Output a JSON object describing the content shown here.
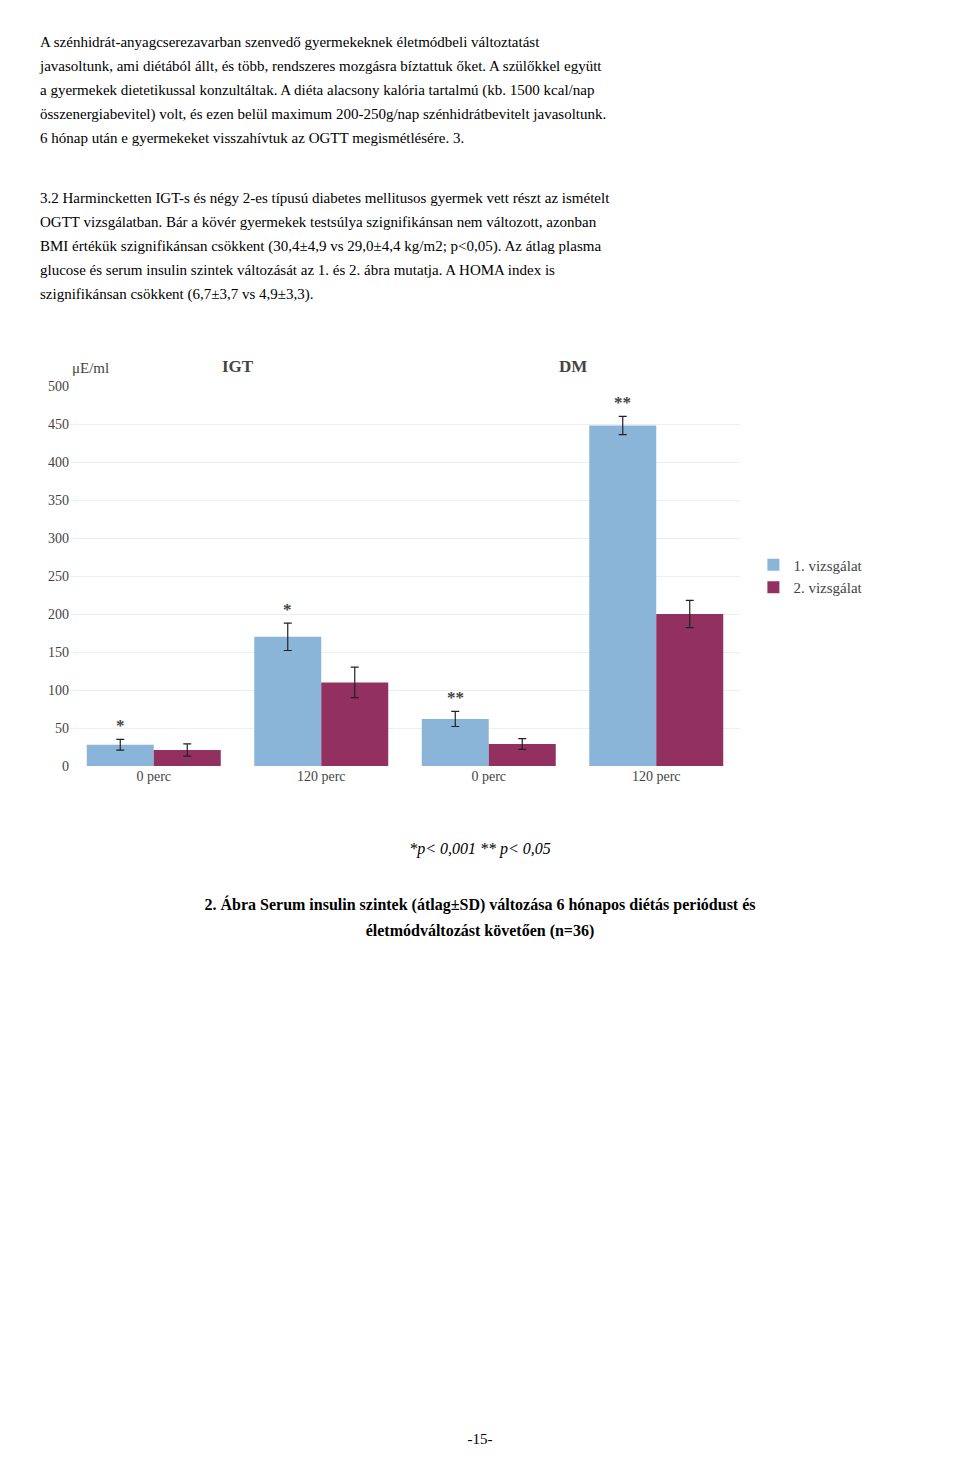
{
  "chart_data": {
    "type": "bar",
    "ylabel": "μE/ml",
    "categories": [
      "0 perc",
      "120 perc",
      "0 perc",
      "120 perc"
    ],
    "groups": [
      {
        "name": "IGT",
        "indices": [
          0,
          1
        ]
      },
      {
        "name": "DM",
        "indices": [
          2,
          3
        ]
      }
    ],
    "series": [
      {
        "name": "1. vizsgálat",
        "color": "#8ab4d8",
        "values": [
          28,
          170,
          62,
          448
        ],
        "errors": [
          7,
          18,
          10,
          12
        ]
      },
      {
        "name": "2. vizsgálat",
        "color": "#923060",
        "values": [
          21,
          110,
          29,
          200
        ],
        "errors": [
          8,
          20,
          7,
          18
        ]
      }
    ],
    "annotations": [
      {
        "text": "*",
        "index": 0,
        "series": "1. vizsgálat"
      },
      {
        "text": "*",
        "index": 1,
        "series": "1. vizsgálat"
      },
      {
        "text": "**",
        "index": 2,
        "series": "1. vizsgálat"
      },
      {
        "text": "**",
        "index": 3,
        "series": "1. vizsgálat"
      }
    ],
    "ylim": [
      0,
      500
    ],
    "yticks": [
      0,
      50,
      100,
      150,
      200,
      250,
      300,
      350,
      400,
      450,
      500
    ],
    "grid": true,
    "legend": "right"
  },
  "paragraphs": [
    [
      "A szénhidrát-anyagcserezavarban szenvedő gyermekeknek életmódbeli változtatást",
      "javasoltunk, ami diétából állt, és több, rendszeres mozgásra bíztattuk őket. A szülőkkel együtt",
      "a gyermekek dietetikussal konzultáltak. A diéta alacsony kalória tartalmú (kb. 1500 kcal/nap",
      "összenergiabevitel) volt, és ezen belül maximum 200-250g/nap szénhidrátbevitelt javasoltunk.",
      "6 hónap után e gyermekeket visszahívtuk az OGTT megismétlésére. 3."
    ],
    [
      "3.2 Harmincketten IGT-s és négy 2-es típusú diabetes mellitusos gyermek vett részt az ismételt",
      "OGTT vizsgálatban. Bár a kövér gyermekek testsúlya szignifikánsan nem változott, azonban",
      "BMI értékük szignifikánsan csökkent (30,4±4,9 vs 29,0±4,4 kg/m2; p<0,05). Az átlag plasma",
      "glucose és serum insulin szintek változását az 1. és 2. ábra mutatja. A HOMA index is",
      "szignifikánsan csökkent (6,7±3,7 vs 4,9±3,3)."
    ]
  ],
  "caption": [
    "*p< 0,001    ** p< 0,05",
    "2. Ábra Serum insulin szintek (átlag±SD) változása 6 hónapos diétás periódust és",
    "életmódváltozást követően  (n=36)"
  ],
  "page_number": "-15-"
}
